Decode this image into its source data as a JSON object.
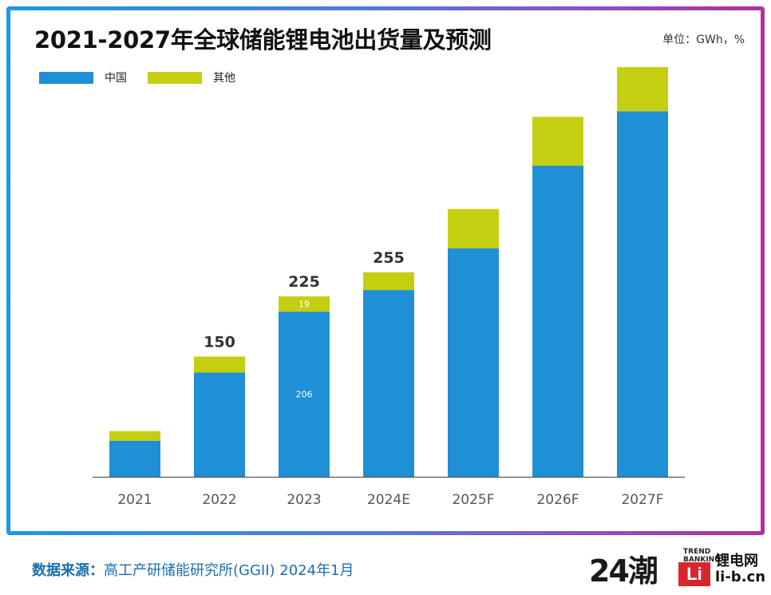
{
  "colors": {
    "china": "#1f8fd6",
    "other": "#c5cf12",
    "axis": "#555555"
  },
  "header": {
    "title": "2021-2027年全球储能锂电池出货量及预测",
    "unit": "单位：GWh，%"
  },
  "chart_data": {
    "type": "bar",
    "stacked": true,
    "categories": [
      "2021",
      "2022",
      "2023",
      "2024E",
      "2025F",
      "2026F",
      "2027F"
    ],
    "series": [
      {
        "name": "中国",
        "values": [
          45,
          130,
          206,
          233,
          285,
          388,
          456
        ]
      },
      {
        "name": "其他",
        "values": [
          12,
          20,
          19,
          22,
          49,
          61,
          55
        ]
      }
    ],
    "total_labels": [
      "",
      "150",
      "225",
      "255",
      "",
      "",
      ""
    ],
    "segment_labels": {
      "中国": [
        "",
        "",
        "206",
        "",
        "",
        "",
        ""
      ],
      "其他": [
        "",
        "",
        "19",
        "",
        "",
        "",
        ""
      ]
    },
    "ylim": [
      0,
      515
    ],
    "legend_position": "top-left",
    "grid": false,
    "xlabel": "",
    "ylabel": ""
  },
  "footer": {
    "source_label": "数据来源：",
    "source_text": "高工产研储能研究所(GGII) 2024年1月"
  },
  "logo": {
    "number": "24潮",
    "trend_line1": "TREND",
    "trend_line2": "BANKING",
    "badge": "Li",
    "site_name": "锂电网",
    "site_url": "li-b.cn"
  }
}
